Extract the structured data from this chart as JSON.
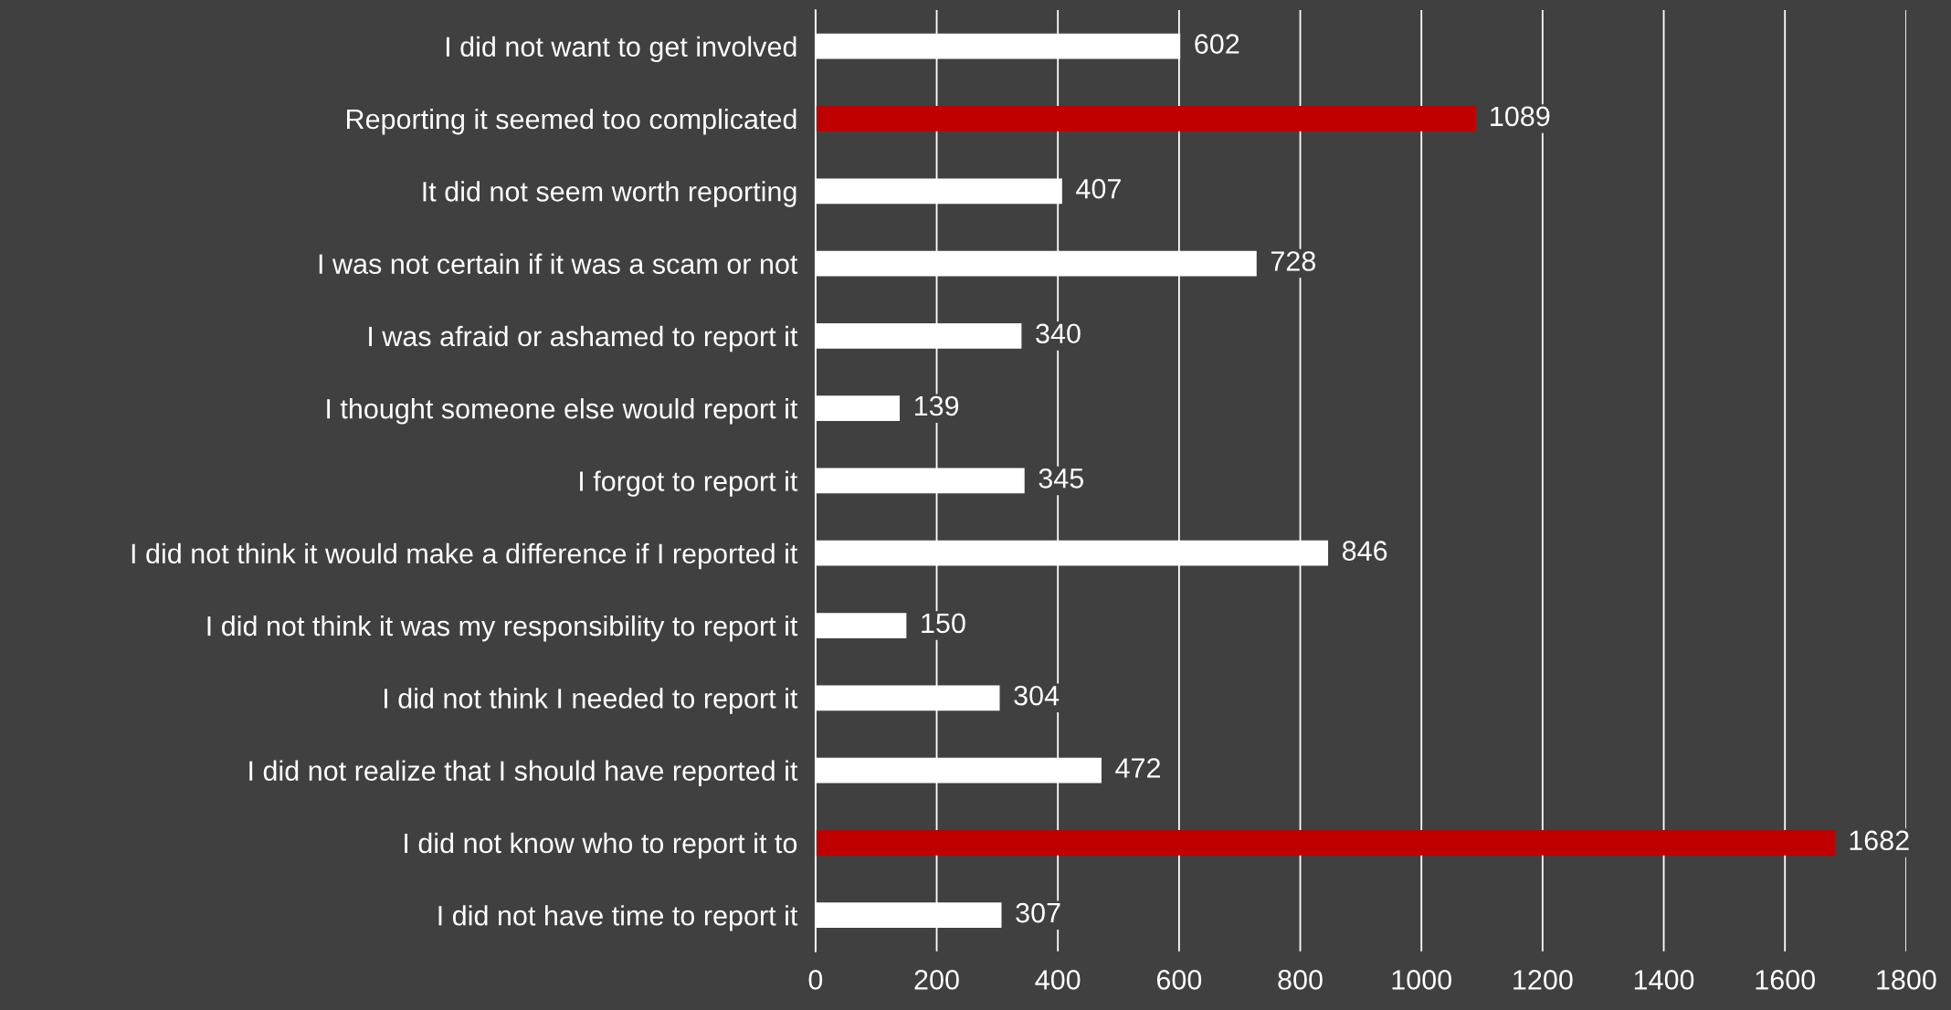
{
  "chart_data": {
    "type": "bar",
    "orientation": "horizontal",
    "categories": [
      "I did not want to get involved",
      "Reporting it seemed too complicated",
      "It did not seem worth reporting",
      "I was not certain if it was a scam or not",
      "I was afraid or ashamed to report it",
      "I thought someone else would report it",
      "I forgot to report it",
      "I did not think it would make a difference if I reported it",
      "I did not think it was my responsibility to report it",
      "I did not think I needed to report it",
      "I did not realize that I should have reported it",
      "I did not know who to report it to",
      "I did not have time to report it"
    ],
    "values": [
      602,
      1089,
      407,
      728,
      340,
      139,
      345,
      846,
      150,
      304,
      472,
      1682,
      307
    ],
    "colors": [
      "#ffffff",
      "#c00000",
      "#ffffff",
      "#ffffff",
      "#ffffff",
      "#ffffff",
      "#ffffff",
      "#ffffff",
      "#ffffff",
      "#ffffff",
      "#ffffff",
      "#c00000",
      "#ffffff"
    ],
    "xlim": [
      0,
      1800
    ],
    "xticks": [
      0,
      200,
      400,
      600,
      800,
      1000,
      1200,
      1400,
      1600,
      1800
    ],
    "grid": "x",
    "data_labels": true
  }
}
